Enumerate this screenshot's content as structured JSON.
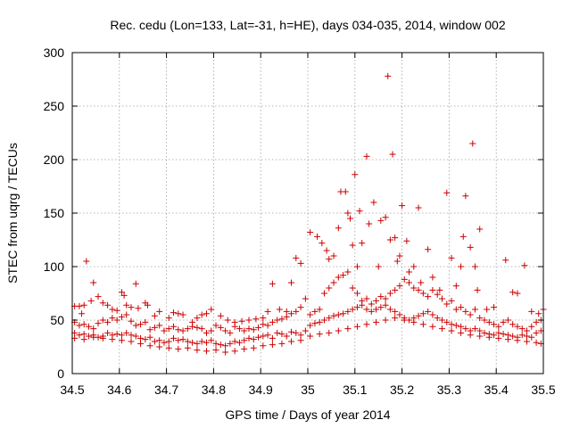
{
  "chart_data": {
    "type": "scatter",
    "title": "Rec. cedu (Lon=133, Lat=-31, h=HE), days 034-035, 2014, window 002",
    "xlabel": "GPS time / Days of year 2014",
    "ylabel": "STEC from uqrg / TECUs",
    "xlim": [
      34.5,
      35.5
    ],
    "ylim": [
      0,
      300
    ],
    "xticks": [
      34.5,
      34.6,
      34.7,
      34.8,
      34.9,
      35,
      35.1,
      35.2,
      35.3,
      35.4,
      35.5
    ],
    "xtick_labels": [
      "34.5",
      "34.6",
      "34.7",
      "34.8",
      "34.9",
      "35",
      "35.1",
      "35.2",
      "35.3",
      "35.4",
      "35.5"
    ],
    "yticks": [
      0,
      50,
      100,
      150,
      200,
      250,
      300
    ],
    "ytick_labels": [
      "0",
      "50",
      "100",
      "150",
      "200",
      "250",
      "300"
    ],
    "grid": true,
    "marker": "+",
    "color": "#cc0000",
    "points": [
      [
        34.505,
        63
      ],
      [
        34.515,
        63
      ],
      [
        34.525,
        64
      ],
      [
        34.52,
        56
      ],
      [
        34.53,
        105
      ],
      [
        34.545,
        85
      ],
      [
        34.54,
        68
      ],
      [
        34.555,
        72
      ],
      [
        34.565,
        66
      ],
      [
        34.575,
        64
      ],
      [
        34.585,
        60
      ],
      [
        34.595,
        59
      ],
      [
        34.605,
        76
      ],
      [
        34.61,
        73
      ],
      [
        34.615,
        64
      ],
      [
        34.625,
        62
      ],
      [
        34.635,
        84
      ],
      [
        34.64,
        61
      ],
      [
        34.655,
        66
      ],
      [
        34.66,
        64
      ],
      [
        34.675,
        54
      ],
      [
        34.685,
        58
      ],
      [
        34.705,
        52
      ],
      [
        34.715,
        57
      ],
      [
        34.725,
        56
      ],
      [
        34.735,
        55
      ],
      [
        34.755,
        48
      ],
      [
        34.765,
        52
      ],
      [
        34.775,
        55
      ],
      [
        34.785,
        56
      ],
      [
        34.795,
        60
      ],
      [
        34.815,
        54
      ],
      [
        34.83,
        50
      ],
      [
        34.845,
        48
      ],
      [
        34.86,
        49
      ],
      [
        34.875,
        50
      ],
      [
        34.89,
        51
      ],
      [
        34.905,
        52
      ],
      [
        34.915,
        58
      ],
      [
        34.925,
        84
      ],
      [
        34.94,
        60
      ],
      [
        34.955,
        58
      ],
      [
        34.965,
        85
      ],
      [
        34.975,
        108
      ],
      [
        34.985,
        103
      ],
      [
        34.995,
        70
      ],
      [
        34.505,
        48
      ],
      [
        34.515,
        45
      ],
      [
        34.525,
        46
      ],
      [
        34.535,
        44
      ],
      [
        34.545,
        42
      ],
      [
        34.555,
        47
      ],
      [
        34.565,
        50
      ],
      [
        34.575,
        48
      ],
      [
        34.585,
        52
      ],
      [
        34.595,
        50
      ],
      [
        34.605,
        53
      ],
      [
        34.615,
        55
      ],
      [
        34.625,
        49
      ],
      [
        34.635,
        45
      ],
      [
        34.645,
        46
      ],
      [
        34.655,
        48
      ],
      [
        34.665,
        41
      ],
      [
        34.675,
        43
      ],
      [
        34.685,
        45
      ],
      [
        34.695,
        40
      ],
      [
        34.705,
        42
      ],
      [
        34.715,
        44
      ],
      [
        34.725,
        41
      ],
      [
        34.735,
        40
      ],
      [
        34.745,
        42
      ],
      [
        34.755,
        44
      ],
      [
        34.765,
        43
      ],
      [
        34.775,
        42
      ],
      [
        34.785,
        38
      ],
      [
        34.795,
        40
      ],
      [
        34.805,
        45
      ],
      [
        34.815,
        43
      ],
      [
        34.825,
        40
      ],
      [
        34.835,
        38
      ],
      [
        34.845,
        44
      ],
      [
        34.855,
        42
      ],
      [
        34.865,
        40
      ],
      [
        34.875,
        42
      ],
      [
        34.885,
        41
      ],
      [
        34.895,
        43
      ],
      [
        34.905,
        46
      ],
      [
        34.915,
        45
      ],
      [
        34.925,
        48
      ],
      [
        34.935,
        50
      ],
      [
        34.945,
        51
      ],
      [
        34.955,
        53
      ],
      [
        34.965,
        56
      ],
      [
        34.975,
        58
      ],
      [
        34.985,
        62
      ],
      [
        34.505,
        38
      ],
      [
        34.515,
        36
      ],
      [
        34.525,
        37
      ],
      [
        34.535,
        35
      ],
      [
        34.545,
        36
      ],
      [
        34.555,
        34
      ],
      [
        34.565,
        35
      ],
      [
        34.575,
        38
      ],
      [
        34.585,
        36
      ],
      [
        34.595,
        37
      ],
      [
        34.605,
        36
      ],
      [
        34.615,
        38
      ],
      [
        34.625,
        36
      ],
      [
        34.635,
        35
      ],
      [
        34.645,
        33
      ],
      [
        34.655,
        32
      ],
      [
        34.665,
        34
      ],
      [
        34.675,
        30
      ],
      [
        34.685,
        31
      ],
      [
        34.695,
        29
      ],
      [
        34.705,
        30
      ],
      [
        34.715,
        33
      ],
      [
        34.725,
        31
      ],
      [
        34.735,
        32
      ],
      [
        34.745,
        30
      ],
      [
        34.755,
        29
      ],
      [
        34.765,
        28
      ],
      [
        34.775,
        30
      ],
      [
        34.785,
        29
      ],
      [
        34.795,
        31
      ],
      [
        34.805,
        28
      ],
      [
        34.815,
        27
      ],
      [
        34.825,
        26
      ],
      [
        34.835,
        28
      ],
      [
        34.845,
        30
      ],
      [
        34.855,
        29
      ],
      [
        34.865,
        31
      ],
      [
        34.875,
        33
      ],
      [
        34.885,
        32
      ],
      [
        34.895,
        34
      ],
      [
        34.905,
        35
      ],
      [
        34.915,
        36
      ],
      [
        34.925,
        33
      ],
      [
        34.935,
        38
      ],
      [
        34.945,
        37
      ],
      [
        34.955,
        35
      ],
      [
        34.965,
        39
      ],
      [
        34.975,
        38
      ],
      [
        34.985,
        36
      ],
      [
        34.995,
        40
      ],
      [
        34.505,
        33
      ],
      [
        34.525,
        32
      ],
      [
        34.545,
        34
      ],
      [
        34.565,
        33
      ],
      [
        34.585,
        32
      ],
      [
        34.605,
        31
      ],
      [
        34.625,
        30
      ],
      [
        34.645,
        28
      ],
      [
        34.665,
        26
      ],
      [
        34.685,
        25
      ],
      [
        34.705,
        24
      ],
      [
        34.725,
        23
      ],
      [
        34.745,
        24
      ],
      [
        34.765,
        22
      ],
      [
        34.785,
        21
      ],
      [
        34.805,
        22
      ],
      [
        34.825,
        20
      ],
      [
        34.845,
        21
      ],
      [
        34.865,
        23
      ],
      [
        34.885,
        24
      ],
      [
        34.905,
        26
      ],
      [
        34.925,
        27
      ],
      [
        34.945,
        28
      ],
      [
        34.965,
        30
      ],
      [
        34.985,
        31
      ],
      [
        35.005,
        132
      ],
      [
        35.02,
        128
      ],
      [
        35.03,
        122
      ],
      [
        35.04,
        115
      ],
      [
        35.045,
        107
      ],
      [
        35.055,
        110
      ],
      [
        35.065,
        136
      ],
      [
        35.07,
        170
      ],
      [
        35.08,
        170
      ],
      [
        35.085,
        150
      ],
      [
        35.09,
        145
      ],
      [
        35.095,
        120
      ],
      [
        35.1,
        186
      ],
      [
        35.105,
        100
      ],
      [
        35.11,
        152
      ],
      [
        35.115,
        122
      ],
      [
        35.125,
        203
      ],
      [
        35.13,
        140
      ],
      [
        35.14,
        160
      ],
      [
        35.15,
        100
      ],
      [
        35.155,
        143
      ],
      [
        35.165,
        146
      ],
      [
        35.17,
        278
      ],
      [
        35.175,
        125
      ],
      [
        35.18,
        205
      ],
      [
        35.185,
        127
      ],
      [
        35.19,
        105
      ],
      [
        35.195,
        110
      ],
      [
        35.2,
        157
      ],
      [
        35.21,
        124
      ],
      [
        35.215,
        95
      ],
      [
        35.225,
        100
      ],
      [
        35.235,
        155
      ],
      [
        35.24,
        85
      ],
      [
        35.255,
        116
      ],
      [
        35.265,
        90
      ],
      [
        35.28,
        78
      ],
      [
        35.295,
        169
      ],
      [
        35.305,
        108
      ],
      [
        35.315,
        82
      ],
      [
        35.325,
        100
      ],
      [
        35.33,
        128
      ],
      [
        35.335,
        166
      ],
      [
        35.345,
        118
      ],
      [
        35.35,
        215
      ],
      [
        35.355,
        100
      ],
      [
        35.36,
        78
      ],
      [
        35.365,
        135
      ],
      [
        35.38,
        60
      ],
      [
        35.395,
        62
      ],
      [
        35.42,
        106
      ],
      [
        35.435,
        76
      ],
      [
        35.445,
        75
      ],
      [
        35.46,
        101
      ],
      [
        35.475,
        58
      ],
      [
        35.49,
        56
      ],
      [
        35.5,
        60
      ],
      [
        35.005,
        55
      ],
      [
        35.015,
        58
      ],
      [
        35.025,
        60
      ],
      [
        35.035,
        75
      ],
      [
        35.045,
        80
      ],
      [
        35.055,
        85
      ],
      [
        35.065,
        90
      ],
      [
        35.075,
        92
      ],
      [
        35.085,
        95
      ],
      [
        35.095,
        80
      ],
      [
        35.105,
        75
      ],
      [
        35.115,
        68
      ],
      [
        35.125,
        70
      ],
      [
        35.135,
        65
      ],
      [
        35.145,
        68
      ],
      [
        35.155,
        72
      ],
      [
        35.165,
        70
      ],
      [
        35.175,
        75
      ],
      [
        35.185,
        78
      ],
      [
        35.195,
        82
      ],
      [
        35.205,
        88
      ],
      [
        35.215,
        85
      ],
      [
        35.225,
        80
      ],
      [
        35.235,
        78
      ],
      [
        35.245,
        75
      ],
      [
        35.255,
        72
      ],
      [
        35.265,
        78
      ],
      [
        35.275,
        74
      ],
      [
        35.285,
        70
      ],
      [
        35.295,
        65
      ],
      [
        35.305,
        68
      ],
      [
        35.315,
        60
      ],
      [
        35.325,
        62
      ],
      [
        35.335,
        58
      ],
      [
        35.345,
        55
      ],
      [
        35.355,
        60
      ],
      [
        35.365,
        52
      ],
      [
        35.375,
        50
      ],
      [
        35.385,
        48
      ],
      [
        35.395,
        46
      ],
      [
        35.405,
        44
      ],
      [
        35.415,
        48
      ],
      [
        35.425,
        50
      ],
      [
        35.435,
        46
      ],
      [
        35.445,
        44
      ],
      [
        35.455,
        42
      ],
      [
        35.465,
        40
      ],
      [
        35.475,
        44
      ],
      [
        35.485,
        48
      ],
      [
        35.495,
        50
      ],
      [
        35.005,
        45
      ],
      [
        35.015,
        47
      ],
      [
        35.025,
        48
      ],
      [
        35.035,
        50
      ],
      [
        35.045,
        52
      ],
      [
        35.055,
        54
      ],
      [
        35.065,
        55
      ],
      [
        35.075,
        56
      ],
      [
        35.085,
        58
      ],
      [
        35.095,
        60
      ],
      [
        35.105,
        62
      ],
      [
        35.115,
        64
      ],
      [
        35.125,
        60
      ],
      [
        35.135,
        58
      ],
      [
        35.145,
        60
      ],
      [
        35.155,
        62
      ],
      [
        35.165,
        64
      ],
      [
        35.175,
        60
      ],
      [
        35.185,
        58
      ],
      [
        35.195,
        55
      ],
      [
        35.205,
        52
      ],
      [
        35.215,
        50
      ],
      [
        35.225,
        52
      ],
      [
        35.235,
        54
      ],
      [
        35.245,
        56
      ],
      [
        35.255,
        58
      ],
      [
        35.265,
        55
      ],
      [
        35.275,
        52
      ],
      [
        35.285,
        50
      ],
      [
        35.295,
        48
      ],
      [
        35.305,
        46
      ],
      [
        35.315,
        45
      ],
      [
        35.325,
        44
      ],
      [
        35.335,
        42
      ],
      [
        35.345,
        40
      ],
      [
        35.355,
        42
      ],
      [
        35.365,
        40
      ],
      [
        35.375,
        38
      ],
      [
        35.385,
        37
      ],
      [
        35.395,
        36
      ],
      [
        35.405,
        38
      ],
      [
        35.415,
        37
      ],
      [
        35.425,
        36
      ],
      [
        35.435,
        35
      ],
      [
        35.445,
        34
      ],
      [
        35.455,
        36
      ],
      [
        35.465,
        35
      ],
      [
        35.475,
        34
      ],
      [
        35.485,
        38
      ],
      [
        35.495,
        40
      ],
      [
        35.005,
        35
      ],
      [
        35.025,
        37
      ],
      [
        35.045,
        38
      ],
      [
        35.065,
        40
      ],
      [
        35.085,
        42
      ],
      [
        35.105,
        44
      ],
      [
        35.125,
        46
      ],
      [
        35.145,
        48
      ],
      [
        35.165,
        50
      ],
      [
        35.185,
        52
      ],
      [
        35.205,
        50
      ],
      [
        35.225,
        48
      ],
      [
        35.245,
        46
      ],
      [
        35.265,
        44
      ],
      [
        35.285,
        42
      ],
      [
        35.305,
        40
      ],
      [
        35.325,
        38
      ],
      [
        35.345,
        36
      ],
      [
        35.365,
        35
      ],
      [
        35.385,
        34
      ],
      [
        35.405,
        33
      ],
      [
        35.425,
        32
      ],
      [
        35.445,
        31
      ],
      [
        35.465,
        30
      ],
      [
        35.485,
        29
      ],
      [
        35.495,
        28
      ]
    ]
  }
}
